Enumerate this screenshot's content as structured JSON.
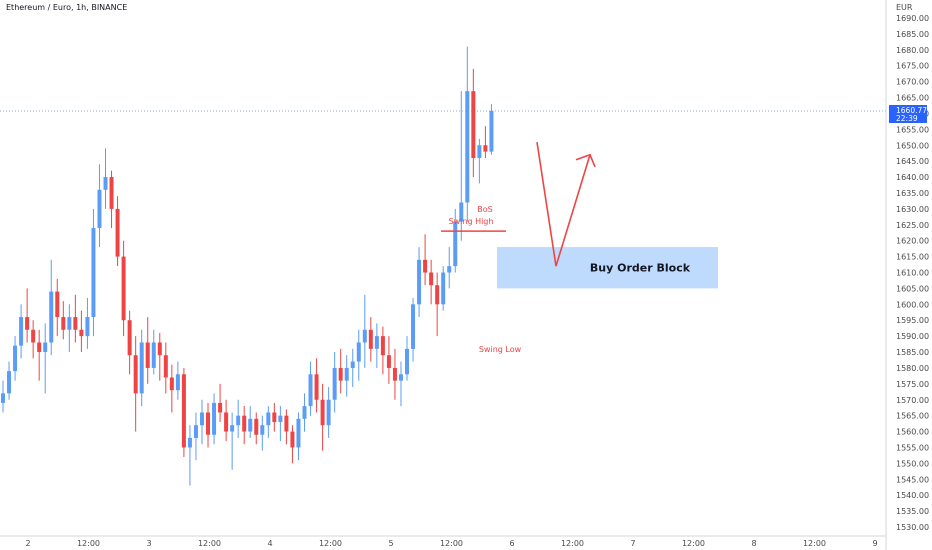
{
  "header": {
    "symbol_title": "Ethereum / Euro, 1h, BINANCE"
  },
  "price_axis": {
    "currency": "EUR",
    "ticks": [
      "1690.00",
      "1685.00",
      "1680.00",
      "1675.00",
      "1670.00",
      "1665.00",
      "1660.00",
      "1655.00",
      "1650.00",
      "1645.00",
      "1640.00",
      "1635.00",
      "1630.00",
      "1625.00",
      "1620.00",
      "1615.00",
      "1610.00",
      "1605.00",
      "1600.00",
      "1595.00",
      "1590.00",
      "1585.00",
      "1580.00",
      "1575.00",
      "1570.00",
      "1565.00",
      "1560.00",
      "1555.00",
      "1550.00",
      "1545.00",
      "1540.00",
      "1535.00",
      "1530.00"
    ],
    "last_price": "1660.77",
    "countdown": "22:39"
  },
  "time_axis": {
    "labels": [
      "2",
      "12:00",
      "3",
      "12:00",
      "4",
      "12:00",
      "5",
      "12:00",
      "6",
      "12:00",
      "7",
      "12:00",
      "8",
      "12:00",
      "9"
    ]
  },
  "annotations": {
    "bos_label": "BoS",
    "swing_high_label": "Swing High",
    "swing_low_label": "Swing Low",
    "order_block_label": "Buy Order Block"
  },
  "colors": {
    "up": "#5b9cf6",
    "down": "#ef4444",
    "order_block_fill": "#b3d4fb",
    "drawing": "#ef4444",
    "axis_text": "#4a4a4a",
    "last_price_tag": "#2962ff"
  },
  "chart_data": {
    "type": "candlestick",
    "title": "Ethereum / Euro, 1h, BINANCE",
    "ylabel": "EUR",
    "ylim": [
      1527,
      1694
    ],
    "last_price": 1660.77,
    "candles": [
      {
        "o": 1569,
        "h": 1576,
        "l": 1566,
        "c": 1572
      },
      {
        "o": 1572,
        "h": 1582,
        "l": 1570,
        "c": 1579
      },
      {
        "o": 1579,
        "h": 1590,
        "l": 1576,
        "c": 1587
      },
      {
        "o": 1587,
        "h": 1600,
        "l": 1583,
        "c": 1596
      },
      {
        "o": 1596,
        "h": 1605,
        "l": 1588,
        "c": 1592
      },
      {
        "o": 1592,
        "h": 1595,
        "l": 1583,
        "c": 1588
      },
      {
        "o": 1588,
        "h": 1592,
        "l": 1576,
        "c": 1585
      },
      {
        "o": 1585,
        "h": 1594,
        "l": 1572,
        "c": 1588
      },
      {
        "o": 1588,
        "h": 1614,
        "l": 1584,
        "c": 1604
      },
      {
        "o": 1604,
        "h": 1608,
        "l": 1590,
        "c": 1596
      },
      {
        "o": 1596,
        "h": 1601,
        "l": 1589,
        "c": 1592
      },
      {
        "o": 1592,
        "h": 1600,
        "l": 1585,
        "c": 1596
      },
      {
        "o": 1596,
        "h": 1603,
        "l": 1588,
        "c": 1592
      },
      {
        "o": 1592,
        "h": 1598,
        "l": 1585,
        "c": 1590
      },
      {
        "o": 1590,
        "h": 1602,
        "l": 1586,
        "c": 1596
      },
      {
        "o": 1596,
        "h": 1630,
        "l": 1590,
        "c": 1624
      },
      {
        "o": 1624,
        "h": 1644,
        "l": 1618,
        "c": 1636
      },
      {
        "o": 1636,
        "h": 1649,
        "l": 1630,
        "c": 1640
      },
      {
        "o": 1640,
        "h": 1642,
        "l": 1624,
        "c": 1630
      },
      {
        "o": 1630,
        "h": 1634,
        "l": 1612,
        "c": 1615
      },
      {
        "o": 1615,
        "h": 1620,
        "l": 1590,
        "c": 1595
      },
      {
        "o": 1595,
        "h": 1598,
        "l": 1578,
        "c": 1584
      },
      {
        "o": 1584,
        "h": 1590,
        "l": 1560,
        "c": 1572
      },
      {
        "o": 1572,
        "h": 1592,
        "l": 1568,
        "c": 1588
      },
      {
        "o": 1588,
        "h": 1596,
        "l": 1575,
        "c": 1580
      },
      {
        "o": 1580,
        "h": 1592,
        "l": 1578,
        "c": 1588
      },
      {
        "o": 1588,
        "h": 1591,
        "l": 1576,
        "c": 1584
      },
      {
        "o": 1584,
        "h": 1588,
        "l": 1572,
        "c": 1577
      },
      {
        "o": 1577,
        "h": 1581,
        "l": 1566,
        "c": 1573
      },
      {
        "o": 1573,
        "h": 1582,
        "l": 1570,
        "c": 1578
      },
      {
        "o": 1578,
        "h": 1580,
        "l": 1552,
        "c": 1555
      },
      {
        "o": 1555,
        "h": 1562,
        "l": 1543,
        "c": 1558
      },
      {
        "o": 1558,
        "h": 1566,
        "l": 1551,
        "c": 1562
      },
      {
        "o": 1562,
        "h": 1570,
        "l": 1556,
        "c": 1566
      },
      {
        "o": 1566,
        "h": 1569,
        "l": 1555,
        "c": 1559
      },
      {
        "o": 1559,
        "h": 1572,
        "l": 1556,
        "c": 1569
      },
      {
        "o": 1569,
        "h": 1575,
        "l": 1563,
        "c": 1566
      },
      {
        "o": 1566,
        "h": 1570,
        "l": 1557,
        "c": 1560
      },
      {
        "o": 1560,
        "h": 1566,
        "l": 1548,
        "c": 1562
      },
      {
        "o": 1562,
        "h": 1570,
        "l": 1558,
        "c": 1565
      },
      {
        "o": 1565,
        "h": 1568,
        "l": 1556,
        "c": 1560
      },
      {
        "o": 1560,
        "h": 1568,
        "l": 1558,
        "c": 1564
      },
      {
        "o": 1564,
        "h": 1566,
        "l": 1556,
        "c": 1559
      },
      {
        "o": 1559,
        "h": 1565,
        "l": 1554,
        "c": 1562
      },
      {
        "o": 1562,
        "h": 1568,
        "l": 1558,
        "c": 1566
      },
      {
        "o": 1566,
        "h": 1569,
        "l": 1560,
        "c": 1563
      },
      {
        "o": 1563,
        "h": 1568,
        "l": 1557,
        "c": 1565
      },
      {
        "o": 1565,
        "h": 1567,
        "l": 1556,
        "c": 1560
      },
      {
        "o": 1560,
        "h": 1562,
        "l": 1550,
        "c": 1555
      },
      {
        "o": 1555,
        "h": 1566,
        "l": 1551,
        "c": 1564
      },
      {
        "o": 1564,
        "h": 1572,
        "l": 1560,
        "c": 1568
      },
      {
        "o": 1568,
        "h": 1582,
        "l": 1565,
        "c": 1578
      },
      {
        "o": 1578,
        "h": 1583,
        "l": 1566,
        "c": 1570
      },
      {
        "o": 1570,
        "h": 1575,
        "l": 1554,
        "c": 1562
      },
      {
        "o": 1562,
        "h": 1574,
        "l": 1558,
        "c": 1570
      },
      {
        "o": 1570,
        "h": 1585,
        "l": 1566,
        "c": 1580
      },
      {
        "o": 1580,
        "h": 1586,
        "l": 1572,
        "c": 1576
      },
      {
        "o": 1576,
        "h": 1584,
        "l": 1571,
        "c": 1580
      },
      {
        "o": 1580,
        "h": 1586,
        "l": 1574,
        "c": 1582
      },
      {
        "o": 1582,
        "h": 1592,
        "l": 1576,
        "c": 1588
      },
      {
        "o": 1588,
        "h": 1603,
        "l": 1580,
        "c": 1592
      },
      {
        "o": 1592,
        "h": 1596,
        "l": 1582,
        "c": 1586
      },
      {
        "o": 1586,
        "h": 1594,
        "l": 1580,
        "c": 1590
      },
      {
        "o": 1590,
        "h": 1593,
        "l": 1578,
        "c": 1584
      },
      {
        "o": 1584,
        "h": 1590,
        "l": 1575,
        "c": 1580
      },
      {
        "o": 1580,
        "h": 1586,
        "l": 1570,
        "c": 1576
      },
      {
        "o": 1576,
        "h": 1582,
        "l": 1568,
        "c": 1578
      },
      {
        "o": 1578,
        "h": 1590,
        "l": 1576,
        "c": 1586
      },
      {
        "o": 1586,
        "h": 1602,
        "l": 1582,
        "c": 1600
      },
      {
        "o": 1600,
        "h": 1618,
        "l": 1596,
        "c": 1614
      },
      {
        "o": 1614,
        "h": 1622,
        "l": 1606,
        "c": 1610
      },
      {
        "o": 1610,
        "h": 1614,
        "l": 1600,
        "c": 1606
      },
      {
        "o": 1606,
        "h": 1610,
        "l": 1590,
        "c": 1600
      },
      {
        "o": 1600,
        "h": 1612,
        "l": 1598,
        "c": 1610
      },
      {
        "o": 1610,
        "h": 1618,
        "l": 1605,
        "c": 1612
      },
      {
        "o": 1612,
        "h": 1630,
        "l": 1610,
        "c": 1626
      },
      {
        "o": 1626,
        "h": 1667,
        "l": 1620,
        "c": 1632
      },
      {
        "o": 1632,
        "h": 1681,
        "l": 1626,
        "c": 1667
      },
      {
        "o": 1667,
        "h": 1674,
        "l": 1640,
        "c": 1646
      },
      {
        "o": 1646,
        "h": 1652,
        "l": 1638,
        "c": 1650
      },
      {
        "o": 1650,
        "h": 1656,
        "l": 1646,
        "c": 1648
      },
      {
        "o": 1648,
        "h": 1663,
        "l": 1647,
        "c": 1660.77
      }
    ],
    "annotations": [
      {
        "type": "horizontal_line",
        "price": 1623,
        "labels": [
          "BoS",
          "Swing High"
        ]
      },
      {
        "type": "label",
        "price": 1590,
        "text": "Swing Low"
      },
      {
        "type": "rectangle",
        "price_from": 1605,
        "price_to": 1618,
        "text": "Buy Order Block"
      },
      {
        "type": "arrow_path",
        "points": [
          1651,
          1612,
          1647
        ]
      }
    ]
  }
}
